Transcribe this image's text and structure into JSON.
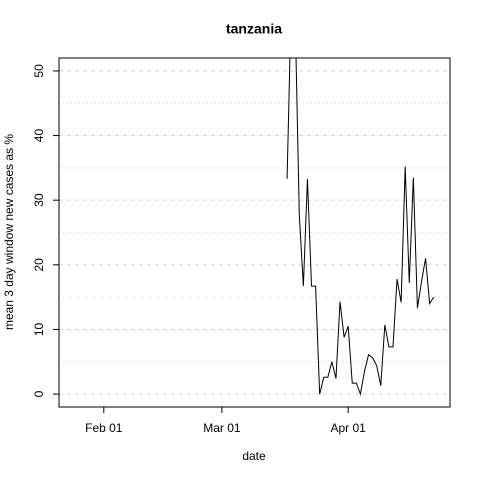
{
  "chart_data": {
    "type": "line",
    "title": "tanzania",
    "xlabel": "date",
    "ylabel": "mean  3  day window new cases as %",
    "x": [
      "Mar 17",
      "Mar 18",
      "Mar 19",
      "Mar 20",
      "Mar 21",
      "Mar 22",
      "Mar 23",
      "Mar 24",
      "Mar 25",
      "Mar 26",
      "Mar 27",
      "Mar 28",
      "Mar 29",
      "Mar 30",
      "Mar 31",
      "Apr 01",
      "Apr 02",
      "Apr 03",
      "Apr 04",
      "Apr 05",
      "Apr 06",
      "Apr 07",
      "Apr 08",
      "Apr 09",
      "Apr 10",
      "Apr 11",
      "Apr 12",
      "Apr 13",
      "Apr 14",
      "Apr 15",
      "Apr 16",
      "Apr 17",
      "Apr 18",
      "Apr 19",
      "Apr 20",
      "Apr 21",
      "Apr 22"
    ],
    "values": [
      33.3,
      60,
      58,
      27.7,
      16.7,
      33.3,
      16.7,
      16.7,
      0,
      2.6,
      2.6,
      5,
      2.4,
      14.3,
      8.8,
      10.5,
      1.7,
      1.7,
      0,
      3.5,
      6.1,
      5.6,
      4.4,
      1.3,
      10.7,
      7.3,
      7.3,
      17.8,
      14.2,
      35.2,
      17.2,
      33.5,
      13.3,
      17.4,
      21,
      14,
      15
    ],
    "color": "#000000",
    "xlim": [
      "Jan 21",
      "Apr 26"
    ],
    "xticks": [
      "Feb 01",
      "Mar 01",
      "Apr 01"
    ],
    "ylim": [
      -2,
      52
    ],
    "yticks": [
      0,
      10,
      20,
      30,
      40,
      50
    ],
    "minor_yticks": [
      5,
      15,
      25,
      35,
      45
    ],
    "grid": true
  }
}
